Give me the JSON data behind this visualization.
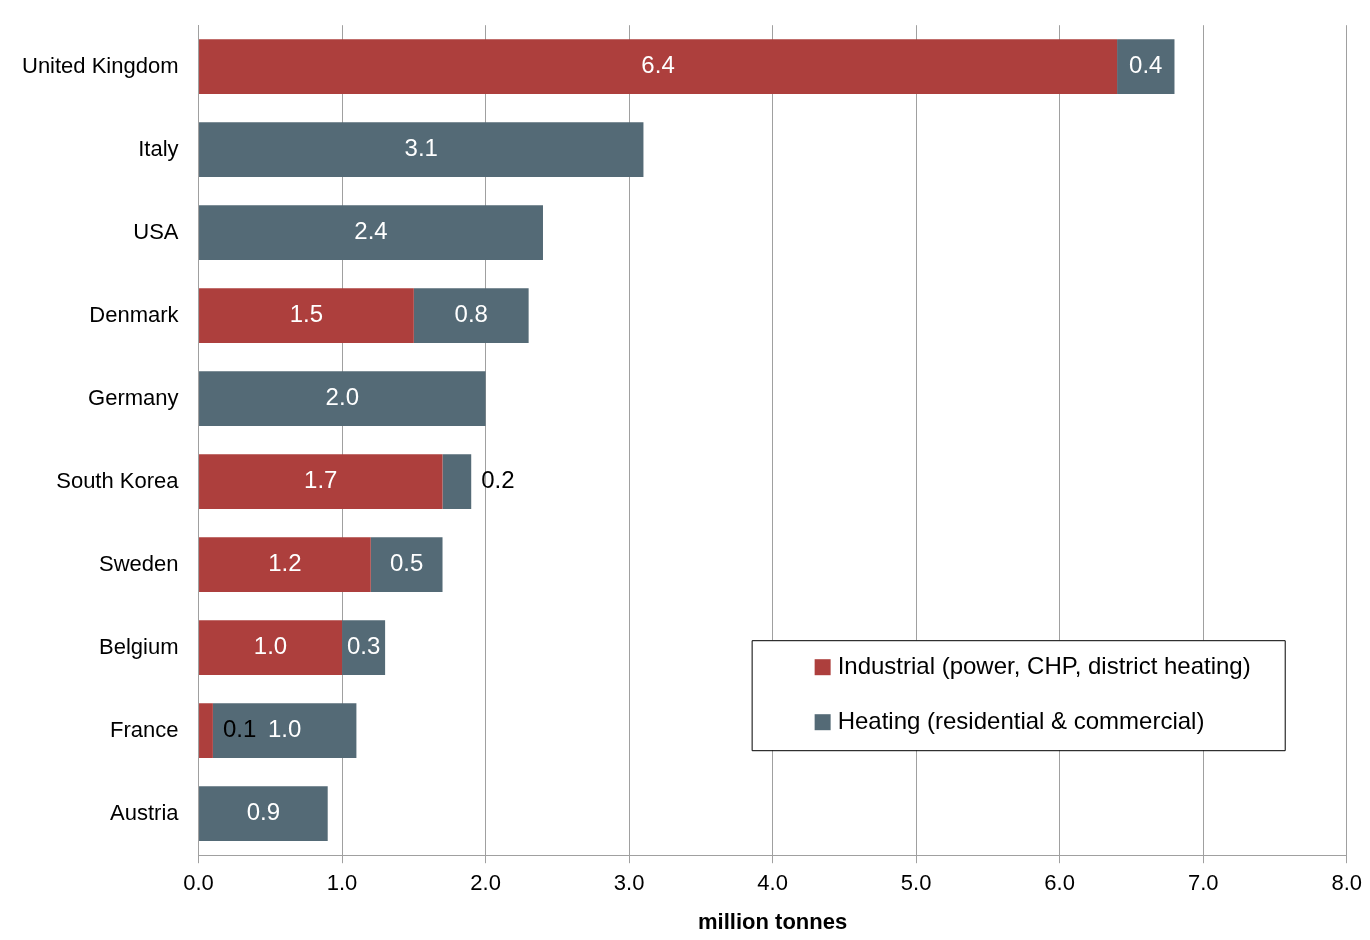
{
  "chart_data": {
    "type": "bar",
    "orientation": "horizontal",
    "stacked": true,
    "xlabel": "million tonnes",
    "categories": [
      "United Kingdom",
      "Italy",
      "USA",
      "Denmark",
      "Germany",
      "South Korea",
      "Sweden",
      "Belgium",
      "France",
      "Austria"
    ],
    "series": [
      {
        "name": "Industrial (power, CHP, district heating)",
        "color": "#ad3f3d",
        "values": [
          6.4,
          0,
          0,
          1.5,
          0,
          1.7,
          1.2,
          1.0,
          0.1,
          0
        ],
        "value_labels": [
          "6.4",
          null,
          null,
          "1.5",
          null,
          "1.7",
          "1.2",
          "1.0",
          "0.1",
          null
        ]
      },
      {
        "name": "Heating (residential & commercial)",
        "color": "#546a76",
        "values": [
          0.4,
          3.1,
          2.4,
          0.8,
          2.0,
          0.2,
          0.5,
          0.3,
          1.0,
          0.9
        ],
        "value_labels": [
          "0.4",
          "3.1",
          "2.4",
          "0.8",
          "2.0",
          "0.2",
          "0.5",
          "0.3",
          "1.0",
          "0.9"
        ]
      }
    ],
    "xlim": [
      0,
      8
    ],
    "xticks": [
      {
        "value": 0,
        "label": "0.0"
      },
      {
        "value": 1,
        "label": "1.0"
      },
      {
        "value": 2,
        "label": "2.0"
      },
      {
        "value": 3,
        "label": "3.0"
      },
      {
        "value": 4,
        "label": "4.0"
      },
      {
        "value": 5,
        "label": "5.0"
      },
      {
        "value": 6,
        "label": "6.0"
      },
      {
        "value": 7,
        "label": "7.0"
      },
      {
        "value": 8,
        "label": "8.0"
      }
    ],
    "grid": "x",
    "legend": "bottom right"
  }
}
